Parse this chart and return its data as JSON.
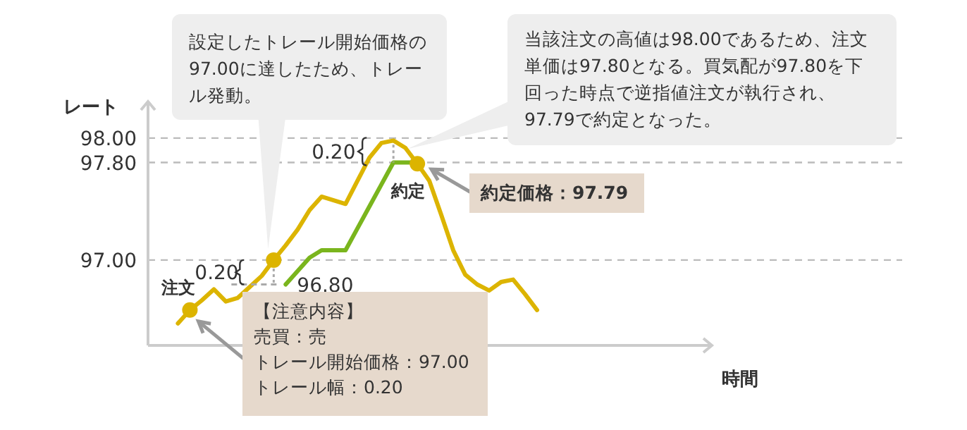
{
  "chart_data": {
    "type": "line",
    "ylabel": "レート",
    "xlabel": "時間",
    "categories": [
      null,
      null,
      null,
      null,
      null,
      null,
      null,
      null,
      null,
      null,
      null,
      null,
      null,
      null,
      null,
      null,
      null,
      null,
      null,
      null,
      null,
      null,
      null,
      null,
      null,
      null,
      null,
      null,
      null,
      null,
      null,
      null,
      null,
      null,
      null,
      null,
      null,
      null,
      null,
      null,
      null,
      null,
      null,
      null,
      null,
      null,
      null,
      null,
      null,
      null,
      null,
      null,
      null,
      null,
      null,
      null,
      null,
      null,
      null,
      null,
      null,
      null,
      null
    ],
    "ylim": [
      96.3,
      98.3
    ],
    "yticks": [
      {
        "value": 98.0,
        "label": "98.00"
      },
      {
        "value": 97.8,
        "label": "97.80"
      },
      {
        "value": 97.0,
        "label": "97.00"
      }
    ],
    "tick_labels": "y",
    "grid": "y",
    "line_style": "solid",
    "series": [
      {
        "color": "#dcb400",
        "values": [
          null,
          null,
          96.48,
          96.59,
          96.67,
          96.76,
          96.66,
          96.69,
          96.78,
          96.87,
          97.0,
          97.12,
          97.25,
          97.41,
          97.52,
          97.49,
          97.46,
          97.65,
          97.84,
          97.96,
          97.98,
          97.92,
          97.79,
          97.65,
          97.37,
          97.08,
          96.88,
          96.8,
          96.75,
          96.82,
          96.84,
          96.72,
          96.59,
          null,
          null,
          null,
          null,
          null,
          null,
          null,
          null,
          null,
          null,
          null,
          null,
          null,
          null,
          null,
          null,
          null,
          null,
          null,
          null,
          null,
          null,
          null,
          null,
          null,
          null,
          null,
          null,
          null,
          null
        ]
      },
      {
        "color": "#7ab51d",
        "values": [
          null,
          null,
          null,
          null,
          null,
          null,
          null,
          null,
          null,
          null,
          null,
          96.8,
          96.91,
          97.02,
          97.08,
          97.08,
          97.08,
          97.26,
          97.44,
          97.62,
          97.8,
          97.8,
          97.8,
          null,
          null,
          null,
          null,
          null,
          null,
          null,
          null,
          null,
          null,
          null,
          null,
          null,
          null,
          null,
          null,
          null,
          null,
          null,
          null,
          null,
          null,
          null,
          null,
          null,
          null,
          null,
          null,
          null,
          null,
          null,
          null,
          null,
          null,
          null,
          null,
          null,
          null,
          null,
          null
        ]
      },
      {
        "type": "scatter",
        "marker": "circle",
        "color": "#dcb400",
        "values": [
          null,
          null,
          null,
          96.59,
          null,
          null,
          null,
          null,
          null,
          null,
          97.0,
          null,
          null,
          null,
          null,
          null,
          null,
          null,
          null,
          null,
          null,
          null,
          97.79,
          null,
          null,
          null,
          null,
          null,
          null,
          null,
          null,
          null,
          null,
          null,
          null,
          null,
          null,
          null,
          null,
          null,
          null,
          null,
          null,
          null,
          null,
          null,
          null,
          null,
          null,
          null,
          null,
          null,
          null,
          null,
          null,
          null,
          null,
          null,
          null,
          null,
          null,
          null,
          null
        ]
      }
    ],
    "annotations": [
      "設定したトレール開始価格の97.00に達したため、トレール発動。",
      "当該注文の高値は98.00であるため、注文単価は97.80となる。買気配が97.80を下回った時点で逆指値注文が執行され、97.79で約定となった。",
      "約定価格：97.79",
      "【注意内容】",
      "売買：売",
      "トレール開始価格：97.00",
      "トレール幅：0.20",
      "注文",
      "0.20",
      "0.20",
      "96.80",
      "約定"
    ]
  }
}
